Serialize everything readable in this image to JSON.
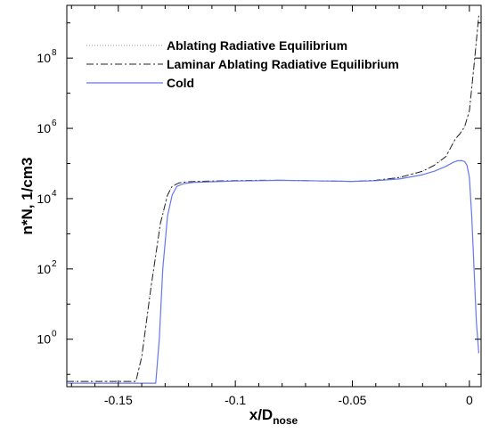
{
  "chart_data": {
    "type": "line",
    "title": "",
    "xlabel": {
      "main": "x/D",
      "sub": "nose"
    },
    "ylabel": "n*N, 1/cm3",
    "xlim": [
      -0.172,
      0.005
    ],
    "ylim_log10": [
      -1.35,
      9.5
    ],
    "y_scale": "log",
    "grid": false,
    "legend_position": "top-left",
    "x_ticks": [
      {
        "value": -0.15,
        "label": "-0.15"
      },
      {
        "value": -0.1,
        "label": "-0.1"
      },
      {
        "value": -0.05,
        "label": "-0.05"
      },
      {
        "value": 0,
        "label": "0"
      }
    ],
    "y_ticks": [
      {
        "exp": 0,
        "base": "10",
        "sup": "0"
      },
      {
        "exp": 2,
        "base": "10",
        "sup": "2"
      },
      {
        "exp": 4,
        "base": "10",
        "sup": "4"
      },
      {
        "exp": 6,
        "base": "10",
        "sup": "6"
      },
      {
        "exp": 8,
        "base": "10",
        "sup": "8"
      }
    ],
    "series": [
      {
        "name": "Ablating Radiative Equilibrium",
        "color": "#999999",
        "dash": "1,2",
        "width": 1,
        "x": [
          -0.172,
          -0.1425,
          -0.14,
          -0.136,
          -0.132,
          -0.129,
          -0.127,
          -0.124,
          -0.12,
          -0.11,
          -0.1,
          -0.09,
          -0.08,
          -0.07,
          -0.06,
          -0.05,
          -0.04,
          -0.03,
          -0.02,
          -0.015,
          -0.01,
          -0.008,
          -0.006,
          -0.004,
          -0.002,
          0,
          0.002,
          0.004
        ],
        "y_log10": [
          -1.2,
          -1.2,
          -0.5,
          1.5,
          3.3,
          4.1,
          4.35,
          4.45,
          4.48,
          4.5,
          4.51,
          4.52,
          4.52,
          4.51,
          4.5,
          4.49,
          4.52,
          4.6,
          4.78,
          4.95,
          5.2,
          5.45,
          5.7,
          5.85,
          6.05,
          6.5,
          7.8,
          9.2
        ]
      },
      {
        "name": "Laminar Ablating Radiative Equilibrium",
        "color": "#222222",
        "dash": "8,3,2,3",
        "width": 1,
        "x": [
          -0.172,
          -0.1425,
          -0.14,
          -0.136,
          -0.132,
          -0.129,
          -0.127,
          -0.124,
          -0.12,
          -0.11,
          -0.1,
          -0.09,
          -0.08,
          -0.07,
          -0.06,
          -0.05,
          -0.04,
          -0.03,
          -0.02,
          -0.015,
          -0.01,
          -0.008,
          -0.006,
          -0.004,
          -0.002,
          0,
          0.002,
          0.004
        ],
        "y_log10": [
          -1.2,
          -1.2,
          -0.5,
          1.5,
          3.3,
          4.1,
          4.35,
          4.45,
          4.48,
          4.5,
          4.51,
          4.52,
          4.52,
          4.51,
          4.5,
          4.49,
          4.52,
          4.6,
          4.78,
          4.95,
          5.2,
          5.45,
          5.7,
          5.85,
          6.05,
          6.5,
          7.8,
          9.2
        ]
      },
      {
        "name": "Cold",
        "color": "#6677ee",
        "dash": "",
        "width": 1.2,
        "x": [
          -0.172,
          -0.134,
          -0.1325,
          -0.131,
          -0.129,
          -0.127,
          -0.125,
          -0.122,
          -0.118,
          -0.11,
          -0.1,
          -0.09,
          -0.08,
          -0.07,
          -0.06,
          -0.05,
          -0.04,
          -0.03,
          -0.02,
          -0.015,
          -0.01,
          -0.007,
          -0.005,
          -0.003,
          -0.002,
          -0.001,
          0,
          0.001,
          0.002,
          0.003,
          0.004
        ],
        "y_log10": [
          -1.25,
          -1.25,
          0.0,
          2.0,
          3.5,
          4.1,
          4.35,
          4.43,
          4.46,
          4.48,
          4.5,
          4.51,
          4.52,
          4.51,
          4.5,
          4.49,
          4.51,
          4.56,
          4.68,
          4.78,
          4.92,
          5.03,
          5.08,
          5.08,
          5.05,
          4.95,
          4.6,
          3.5,
          2.0,
          0.5,
          -0.4
        ]
      }
    ]
  }
}
